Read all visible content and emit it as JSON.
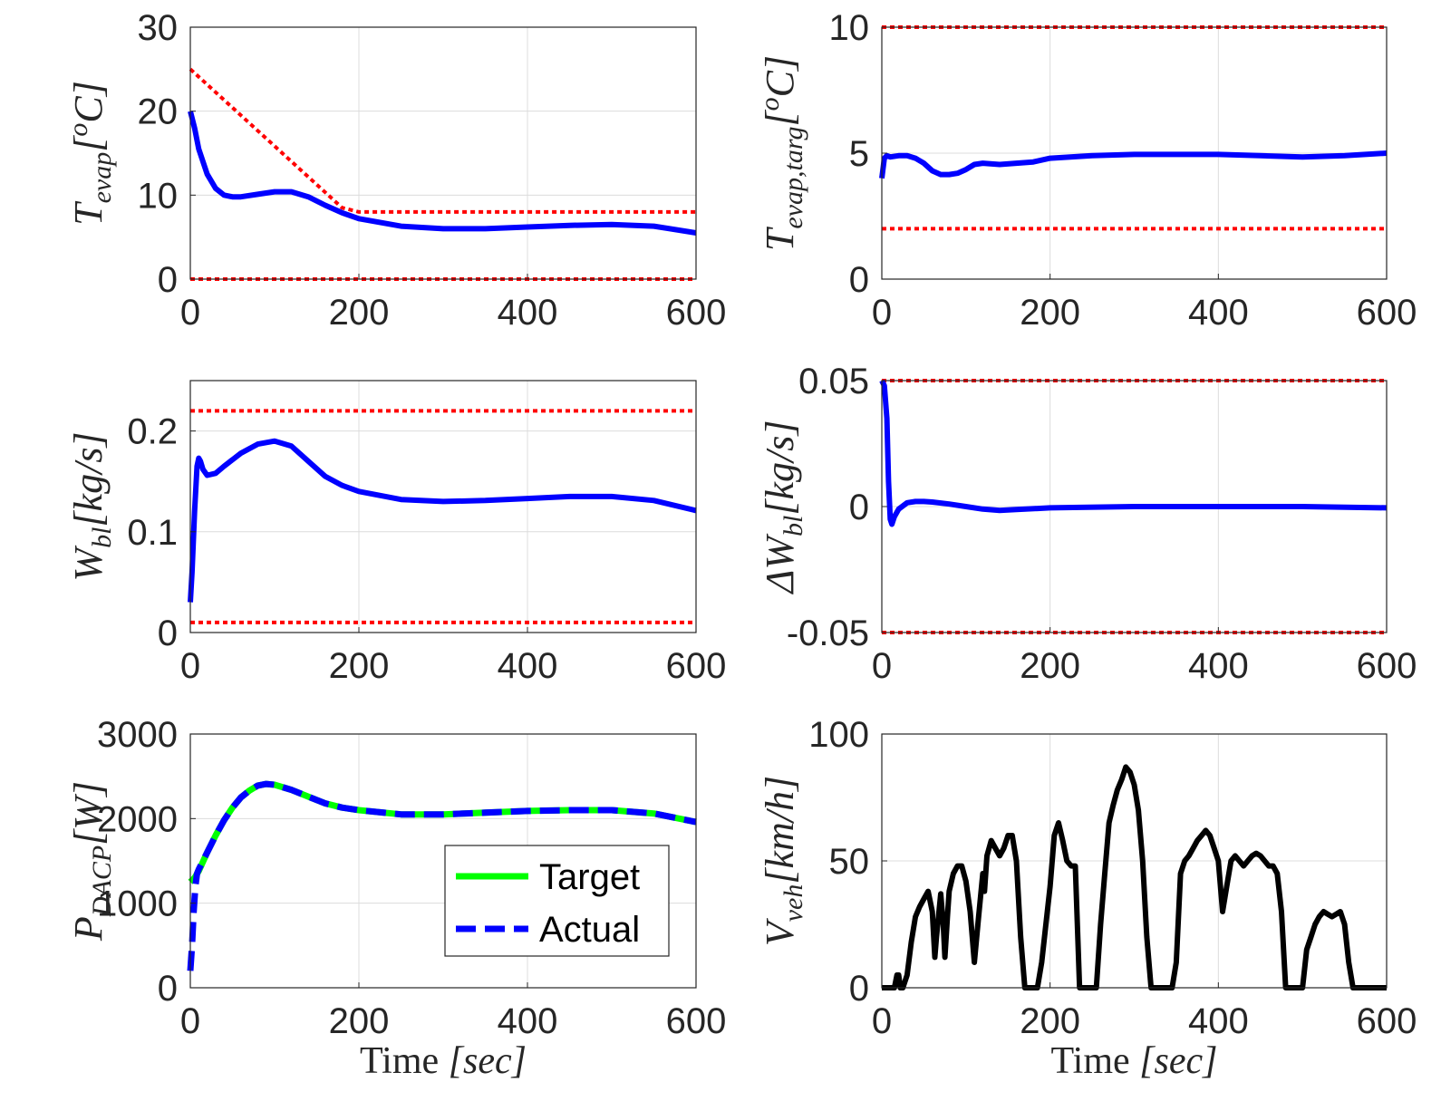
{
  "chart_data": [
    {
      "id": "p1",
      "type": "line",
      "ylabel": {
        "main": "T",
        "sub": "evap",
        "unit": "[",
        "unit_sup": "o",
        "unit_tail": "C]"
      },
      "xlim": [
        0,
        600
      ],
      "ylim": [
        0,
        30
      ],
      "xticks": [
        "0",
        "200",
        "400",
        "600"
      ],
      "xtick_values": [
        0,
        200,
        400,
        600
      ],
      "yticks": [
        "0",
        "10",
        "20",
        "30"
      ],
      "ytick_values": [
        0,
        10,
        20,
        30
      ],
      "grid": true,
      "series": [
        {
          "name": "T_evap",
          "color": "#0000ff",
          "style": "solid",
          "width": 6,
          "x": [
            0,
            5,
            10,
            20,
            30,
            40,
            50,
            60,
            80,
            100,
            120,
            140,
            160,
            180,
            200,
            250,
            300,
            350,
            400,
            450,
            500,
            550,
            600
          ],
          "y": [
            20,
            18,
            15.5,
            12.5,
            10.8,
            10,
            9.8,
            9.8,
            10.1,
            10.4,
            10.4,
            9.8,
            8.8,
            7.9,
            7.2,
            6.3,
            6.0,
            6.0,
            6.2,
            6.4,
            6.5,
            6.3,
            5.5
          ]
        },
        {
          "name": "Upper bound",
          "color": "#ff0000",
          "style": "dotted",
          "width": 4,
          "x": [
            0,
            180,
            200,
            600
          ],
          "y": [
            25,
            8.5,
            8,
            8
          ]
        },
        {
          "name": "Lower bound",
          "color": "#ff0000",
          "style": "dotted",
          "width": 4,
          "x": [
            0,
            600
          ],
          "y": [
            0,
            0
          ]
        }
      ]
    },
    {
      "id": "p2",
      "type": "line",
      "ylabel": {
        "main": "T",
        "sub": "evap,targ",
        "unit": "[",
        "unit_sup": "o",
        "unit_tail": "C]"
      },
      "xlim": [
        0,
        600
      ],
      "ylim": [
        0,
        10
      ],
      "xticks": [
        "0",
        "200",
        "400",
        "600"
      ],
      "xtick_values": [
        0,
        200,
        400,
        600
      ],
      "yticks": [
        "0",
        "5",
        "10"
      ],
      "ytick_values": [
        0,
        5,
        10
      ],
      "grid": true,
      "series": [
        {
          "name": "T_evap_targ",
          "color": "#0000ff",
          "style": "solid",
          "width": 6,
          "x": [
            0,
            3,
            6,
            10,
            20,
            30,
            40,
            50,
            60,
            70,
            80,
            90,
            100,
            110,
            120,
            140,
            160,
            180,
            200,
            250,
            300,
            350,
            400,
            450,
            500,
            550,
            600
          ],
          "y": [
            4.0,
            4.8,
            4.9,
            4.85,
            4.9,
            4.9,
            4.8,
            4.6,
            4.3,
            4.15,
            4.15,
            4.2,
            4.35,
            4.55,
            4.6,
            4.55,
            4.6,
            4.65,
            4.8,
            4.9,
            4.95,
            4.95,
            4.95,
            4.9,
            4.85,
            4.9,
            5.0
          ]
        },
        {
          "name": "Upper bound",
          "color": "#ff0000",
          "style": "dotted",
          "width": 4,
          "x": [
            0,
            600
          ],
          "y": [
            10,
            10
          ]
        },
        {
          "name": "Lower bound",
          "color": "#ff0000",
          "style": "dotted",
          "width": 4,
          "x": [
            0,
            600
          ],
          "y": [
            2,
            2
          ]
        }
      ]
    },
    {
      "id": "p3",
      "type": "line",
      "ylabel": {
        "main": "W",
        "sub": "bl",
        "unit": "[kg/s]",
        "unit_sup": "",
        "unit_tail": ""
      },
      "xlim": [
        0,
        600
      ],
      "ylim": [
        0,
        0.25
      ],
      "xticks": [
        "0",
        "200",
        "400",
        "600"
      ],
      "xtick_values": [
        0,
        200,
        400,
        600
      ],
      "yticks": [
        "0",
        "0.1",
        "0.2"
      ],
      "ytick_values": [
        0,
        0.1,
        0.2
      ],
      "grid": true,
      "series": [
        {
          "name": "W_bl",
          "color": "#0000ff",
          "style": "solid",
          "width": 6,
          "x": [
            0,
            2,
            5,
            8,
            10,
            12,
            15,
            20,
            30,
            40,
            60,
            80,
            100,
            120,
            140,
            160,
            180,
            200,
            250,
            300,
            350,
            400,
            450,
            500,
            550,
            600
          ],
          "y": [
            0.03,
            0.06,
            0.12,
            0.165,
            0.173,
            0.17,
            0.162,
            0.156,
            0.158,
            0.165,
            0.178,
            0.187,
            0.19,
            0.185,
            0.17,
            0.155,
            0.146,
            0.14,
            0.132,
            0.13,
            0.131,
            0.133,
            0.135,
            0.135,
            0.131,
            0.121
          ]
        },
        {
          "name": "Upper bound",
          "color": "#ff0000",
          "style": "dotted",
          "width": 4,
          "x": [
            0,
            600
          ],
          "y": [
            0.22,
            0.22
          ]
        },
        {
          "name": "Lower bound",
          "color": "#ff0000",
          "style": "dotted",
          "width": 4,
          "x": [
            0,
            600
          ],
          "y": [
            0.01,
            0.01
          ]
        }
      ]
    },
    {
      "id": "p4",
      "type": "line",
      "ylabel": {
        "main": "ΔW",
        "sub": "bl",
        "unit": "[kg/s]",
        "unit_sup": "",
        "unit_tail": ""
      },
      "xlim": [
        0,
        600
      ],
      "ylim": [
        -0.05,
        0.05
      ],
      "xticks": [
        "0",
        "200",
        "400",
        "600"
      ],
      "xtick_values": [
        0,
        200,
        400,
        600
      ],
      "yticks": [
        "-0.05",
        "0",
        "0.05"
      ],
      "ytick_values": [
        -0.05,
        0,
        0.05
      ],
      "grid": true,
      "series": [
        {
          "name": "dW_bl",
          "color": "#0000ff",
          "style": "solid",
          "width": 6,
          "x": [
            0,
            3,
            6,
            8,
            10,
            12,
            15,
            20,
            30,
            40,
            50,
            60,
            80,
            100,
            120,
            140,
            160,
            200,
            300,
            400,
            500,
            600
          ],
          "y": [
            0.05,
            0.048,
            0.035,
            0.01,
            -0.005,
            -0.007,
            -0.004,
            -0.001,
            0.0015,
            0.002,
            0.002,
            0.0018,
            0.001,
            0.0,
            -0.001,
            -0.0015,
            -0.0012,
            -0.0005,
            0.0,
            0.0,
            0.0,
            -0.0005
          ]
        },
        {
          "name": "Upper bound",
          "color": "#ff0000",
          "style": "dotted",
          "width": 4,
          "x": [
            0,
            600
          ],
          "y": [
            0.05,
            0.05
          ]
        },
        {
          "name": "Lower bound",
          "color": "#ff0000",
          "style": "dotted",
          "width": 4,
          "x": [
            0,
            600
          ],
          "y": [
            -0.05,
            -0.05
          ]
        }
      ]
    },
    {
      "id": "p5",
      "type": "line",
      "ylabel": {
        "main": "P",
        "sub": "DACP",
        "unit": "[W]",
        "unit_sup": "",
        "unit_tail": ""
      },
      "xlabel": {
        "text": "Time ",
        "unit": "[sec]"
      },
      "xlim": [
        0,
        600
      ],
      "ylim": [
        0,
        3000
      ],
      "xticks": [
        "0",
        "200",
        "400",
        "600"
      ],
      "xtick_values": [
        0,
        200,
        400,
        600
      ],
      "yticks": [
        "0",
        "1000",
        "2000",
        "3000"
      ],
      "ytick_values": [
        0,
        1000,
        2000,
        3000
      ],
      "grid": true,
      "legend": {
        "position": "lower-right",
        "entries": [
          "Target",
          "Actual"
        ]
      },
      "series": [
        {
          "name": "Target",
          "color": "#00ff00",
          "style": "solid",
          "width": 7,
          "x": [
            0,
            5,
            10,
            20,
            30,
            40,
            50,
            60,
            70,
            80,
            90,
            100,
            120,
            140,
            160,
            180,
            200,
            250,
            300,
            350,
            400,
            450,
            500,
            550,
            600
          ],
          "y": [
            1250,
            1300,
            1380,
            1600,
            1800,
            1980,
            2130,
            2250,
            2330,
            2390,
            2410,
            2400,
            2340,
            2260,
            2180,
            2130,
            2100,
            2050,
            2050,
            2070,
            2090,
            2100,
            2100,
            2060,
            1960
          ]
        },
        {
          "name": "Actual",
          "color": "#0000ff",
          "style": "dashed",
          "width": 7,
          "x": [
            0,
            2,
            4,
            6,
            8,
            10,
            20,
            30,
            40,
            50,
            60,
            70,
            80,
            90,
            100,
            120,
            140,
            160,
            180,
            200,
            250,
            300,
            350,
            400,
            450,
            500,
            550,
            600
          ],
          "y": [
            200,
            500,
            900,
            1200,
            1350,
            1400,
            1600,
            1800,
            1980,
            2130,
            2250,
            2330,
            2390,
            2410,
            2400,
            2340,
            2260,
            2180,
            2130,
            2100,
            2050,
            2050,
            2070,
            2090,
            2100,
            2100,
            2060,
            1960
          ]
        }
      ]
    },
    {
      "id": "p6",
      "type": "line",
      "ylabel": {
        "main": "V",
        "sub": "veh",
        "unit": "[km/h]",
        "unit_sup": "",
        "unit_tail": ""
      },
      "xlabel": {
        "text": "Time ",
        "unit": "[sec]"
      },
      "xlim": [
        0,
        600
      ],
      "ylim": [
        0,
        100
      ],
      "xticks": [
        "0",
        "200",
        "400",
        "600"
      ],
      "xtick_values": [
        0,
        200,
        400,
        600
      ],
      "yticks": [
        "0",
        "50",
        "100"
      ],
      "ytick_values": [
        0,
        50,
        100
      ],
      "grid": true,
      "series": [
        {
          "name": "V_veh",
          "color": "#000000",
          "style": "solid",
          "width": 6,
          "x": [
            0,
            15,
            18,
            20,
            22,
            25,
            30,
            35,
            40,
            45,
            50,
            55,
            60,
            63,
            65,
            70,
            73,
            75,
            78,
            80,
            85,
            90,
            95,
            100,
            105,
            110,
            115,
            120,
            122,
            125,
            130,
            135,
            140,
            145,
            150,
            155,
            160,
            165,
            170,
            175,
            180,
            185,
            190,
            200,
            205,
            210,
            215,
            220,
            225,
            230,
            235,
            240,
            245,
            250,
            255,
            260,
            265,
            270,
            275,
            280,
            285,
            290,
            295,
            300,
            305,
            310,
            315,
            320,
            325,
            330,
            335,
            340,
            345,
            350,
            355,
            360,
            365,
            370,
            375,
            380,
            385,
            390,
            395,
            400,
            405,
            410,
            415,
            420,
            425,
            430,
            435,
            440,
            445,
            450,
            455,
            460,
            465,
            470,
            475,
            480,
            485,
            490,
            495,
            500,
            505,
            510,
            515,
            520,
            525,
            530,
            535,
            540,
            545,
            550,
            555,
            560,
            565,
            570,
            575,
            580,
            585,
            590,
            595,
            600
          ],
          "y": [
            0,
            0,
            5,
            5,
            0,
            0,
            5,
            18,
            28,
            32,
            35,
            38,
            30,
            12,
            20,
            37,
            25,
            12,
            28,
            38,
            45,
            48,
            48,
            42,
            30,
            10,
            28,
            45,
            38,
            52,
            58,
            55,
            52,
            55,
            60,
            60,
            50,
            20,
            0,
            0,
            0,
            0,
            10,
            40,
            60,
            65,
            58,
            50,
            48,
            48,
            0,
            0,
            0,
            0,
            0,
            25,
            45,
            65,
            72,
            78,
            82,
            87,
            85,
            80,
            70,
            50,
            20,
            0,
            0,
            0,
            0,
            0,
            0,
            10,
            45,
            50,
            52,
            55,
            58,
            60,
            62,
            60,
            55,
            50,
            30,
            40,
            50,
            52,
            50,
            48,
            50,
            52,
            53,
            52,
            50,
            48,
            48,
            45,
            30,
            0,
            0,
            0,
            0,
            0,
            15,
            20,
            25,
            28,
            30,
            29,
            28,
            29,
            30,
            25,
            10,
            0,
            0,
            0,
            0,
            0,
            0,
            0,
            0,
            0
          ]
        }
      ]
    }
  ]
}
